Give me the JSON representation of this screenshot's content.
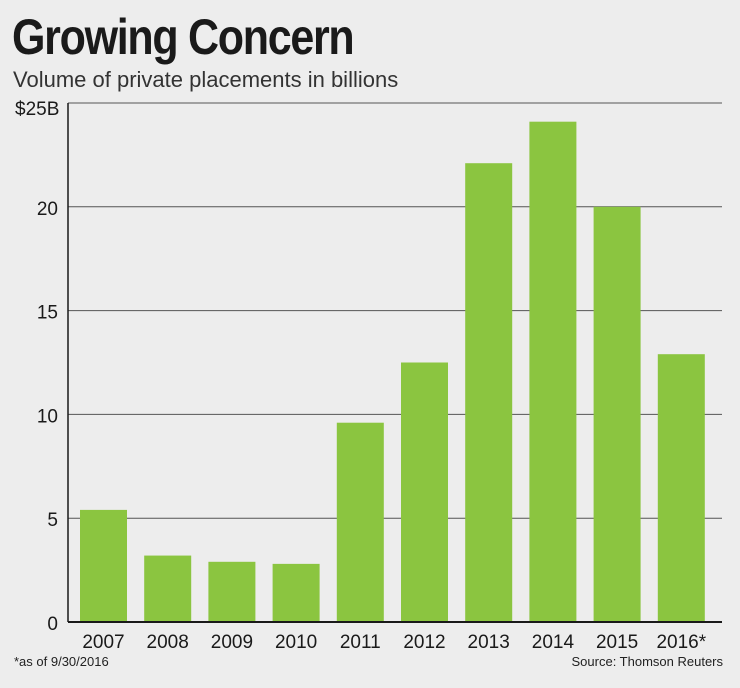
{
  "title": "Growing Concern",
  "subtitle": "Volume of private placements in billions",
  "footnote": "*as of 9/30/2016",
  "source": "Source: Thomson Reuters",
  "colors": {
    "bar": "#8bc540",
    "grid": "#555555",
    "background": "#ededed"
  },
  "chart_data": {
    "type": "bar",
    "title": "Growing Concern",
    "subtitle": "Volume of private placements in billions",
    "categories": [
      "2007",
      "2008",
      "2009",
      "2010",
      "2011",
      "2012",
      "2013",
      "2014",
      "2015",
      "2016*"
    ],
    "values": [
      5.4,
      3.2,
      2.9,
      2.8,
      9.6,
      12.5,
      22.1,
      24.1,
      20.0,
      12.9
    ],
    "ylim": [
      0,
      25
    ],
    "yticks": [
      0,
      5,
      10,
      15,
      20,
      25
    ],
    "ytick_labels": [
      "0",
      "5",
      "10",
      "15",
      "20",
      "$25B"
    ],
    "grid": true,
    "xlabel": "",
    "ylabel": ""
  }
}
